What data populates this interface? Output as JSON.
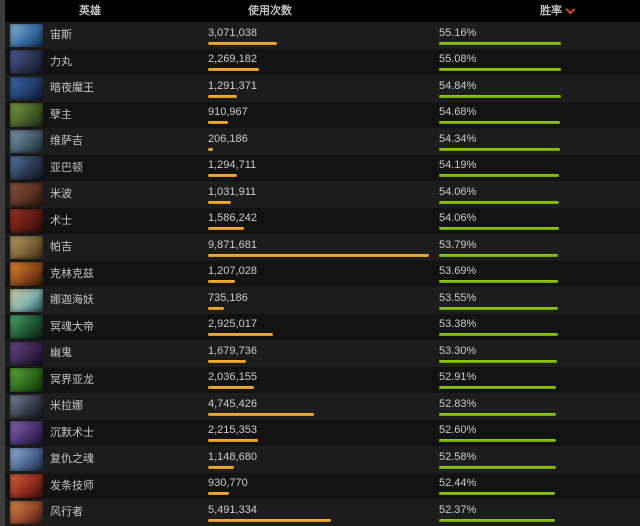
{
  "header": {
    "hero_label": "英雄",
    "usage_label": "使用次数",
    "winrate_label": "胜率",
    "sort": {
      "column": "winrate",
      "direction": "desc",
      "icon": "caret-down-icon",
      "icon_color": "#cf4a28"
    }
  },
  "colors": {
    "usage_bar": "#e8a02c",
    "winrate_bar": "#7cb804",
    "header_bg": "#000000",
    "row_odd_bg": "#1d1d1d",
    "row_even_bg": "#131313",
    "text": "#c6c6c6"
  },
  "table": {
    "rows": [
      {
        "name": "宙斯",
        "usage": "3,071,038",
        "usage_value": 3071038,
        "winrate": "55.16%",
        "winrate_value": 55.16,
        "portrait": [
          "#8fb7d9",
          "#3a6ea8",
          "#14314f"
        ]
      },
      {
        "name": "力丸",
        "usage": "2,269,182",
        "usage_value": 2269182,
        "winrate": "55.08%",
        "winrate_value": 55.08,
        "portrait": [
          "#4a5f9e",
          "#2b3350",
          "#12142a"
        ]
      },
      {
        "name": "暗夜魔王",
        "usage": "1,291,371",
        "usage_value": 1291371,
        "winrate": "54.84%",
        "winrate_value": 54.84,
        "portrait": [
          "#3d6db0",
          "#23406e",
          "#0d1830"
        ]
      },
      {
        "name": "孽主",
        "usage": "910,967",
        "usage_value": 910967,
        "winrate": "54.68%",
        "winrate_value": 54.68,
        "portrait": [
          "#7da13f",
          "#46622a",
          "#1c2a12"
        ]
      },
      {
        "name": "维萨吉",
        "usage": "206,186",
        "usage_value": 206186,
        "winrate": "54.34%",
        "winrate_value": 54.34,
        "portrait": [
          "#7e99ac",
          "#46606f",
          "#1d2a33"
        ]
      },
      {
        "name": "亚巴顿",
        "usage": "1,294,711",
        "usage_value": 1294711,
        "winrate": "54.19%",
        "winrate_value": 54.19,
        "portrait": [
          "#5a7aa8",
          "#2c3a55",
          "#101522"
        ]
      },
      {
        "name": "米波",
        "usage": "1,031,911",
        "usage_value": 1031911,
        "winrate": "54.06%",
        "winrate_value": 54.06,
        "portrait": [
          "#8a5a3a",
          "#5e3424",
          "#2a140c"
        ]
      },
      {
        "name": "术士",
        "usage": "1,586,242",
        "usage_value": 1586242,
        "winrate": "54.06%",
        "winrate_value": 54.06,
        "portrait": [
          "#a03426",
          "#661c14",
          "#2a0c08"
        ]
      },
      {
        "name": "帕吉",
        "usage": "9,871,681",
        "usage_value": 9871681,
        "winrate": "53.79%",
        "winrate_value": 53.79,
        "portrait": [
          "#b9a06a",
          "#7d6438",
          "#3a2c16"
        ]
      },
      {
        "name": "克林克兹",
        "usage": "1,207,028",
        "usage_value": 1207028,
        "winrate": "53.69%",
        "winrate_value": 53.69,
        "portrait": [
          "#e08a28",
          "#90481a",
          "#3a1c0a"
        ]
      },
      {
        "name": "娜迦海妖",
        "usage": "735,186",
        "usage_value": 735186,
        "winrate": "53.55%",
        "winrate_value": 53.55,
        "portrait": [
          "#d9c9a0",
          "#7fb4b0",
          "#2a4a4a"
        ]
      },
      {
        "name": "冥魂大帝",
        "usage": "2,925,017",
        "usage_value": 2925017,
        "winrate": "53.38%",
        "winrate_value": 53.38,
        "portrait": [
          "#4fae6a",
          "#1f5a36",
          "#0c1f12"
        ]
      },
      {
        "name": "幽鬼",
        "usage": "1,679,736",
        "usage_value": 1679736,
        "winrate": "53.30%",
        "winrate_value": 53.3,
        "portrait": [
          "#6a4a8c",
          "#3a2650",
          "#150c22"
        ]
      },
      {
        "name": "冥界亚龙",
        "usage": "2,036,155",
        "usage_value": 2036155,
        "winrate": "52.91%",
        "winrate_value": 52.91,
        "portrait": [
          "#5fae3a",
          "#2f6a1e",
          "#12300c"
        ]
      },
      {
        "name": "米拉娜",
        "usage": "4,745,426",
        "usage_value": 4745426,
        "winrate": "52.83%",
        "winrate_value": 52.83,
        "portrait": [
          "#7a8aa0",
          "#3a4050",
          "#14161f"
        ]
      },
      {
        "name": "沉默术士",
        "usage": "2,215,353",
        "usage_value": 2215353,
        "winrate": "52.60%",
        "winrate_value": 52.6,
        "portrait": [
          "#8a6ab8",
          "#4a3470",
          "#1c1230"
        ]
      },
      {
        "name": "复仇之魂",
        "usage": "1,148,680",
        "usage_value": 1148680,
        "winrate": "52.58%",
        "winrate_value": 52.58,
        "portrait": [
          "#9ab8d8",
          "#4a6a96",
          "#1c2c44"
        ]
      },
      {
        "name": "发条技师",
        "usage": "930,770",
        "usage_value": 930770,
        "winrate": "52.44%",
        "winrate_value": 52.44,
        "portrait": [
          "#d86a40",
          "#962c1c",
          "#3a120a"
        ]
      },
      {
        "name": "风行者",
        "usage": "5,491,334",
        "usage_value": 5491334,
        "winrate": "52.37%",
        "winrate_value": 52.37,
        "portrait": [
          "#d88a4a",
          "#9a4a2a",
          "#3a1c10"
        ]
      }
    ]
  }
}
